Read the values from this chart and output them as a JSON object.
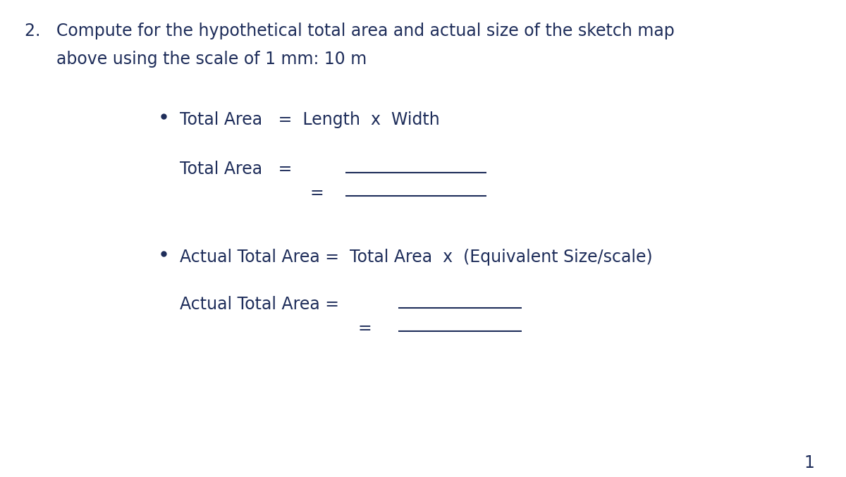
{
  "bg_color": "#ffffff",
  "text_color": "#1e2d5a",
  "title_line1": "2.   Compute for the hypothetical total area and actual size of the sketch map",
  "title_line2": "      above using the scale of 1 mm: 10 m",
  "bullet1_formula": "Total Area   =  Length  x  Width",
  "label_total_area": "Total Area   =",
  "label_eq1": "=",
  "bullet2_formula": "Actual Total Area =  Total Area  x  (Equivalent Size/scale)",
  "label_actual_area": "Actual Total Area =",
  "label_eq2": "=",
  "page_number": "1",
  "font_size": 17,
  "line_color": "#1e2d5a",
  "line_width": 1.5
}
